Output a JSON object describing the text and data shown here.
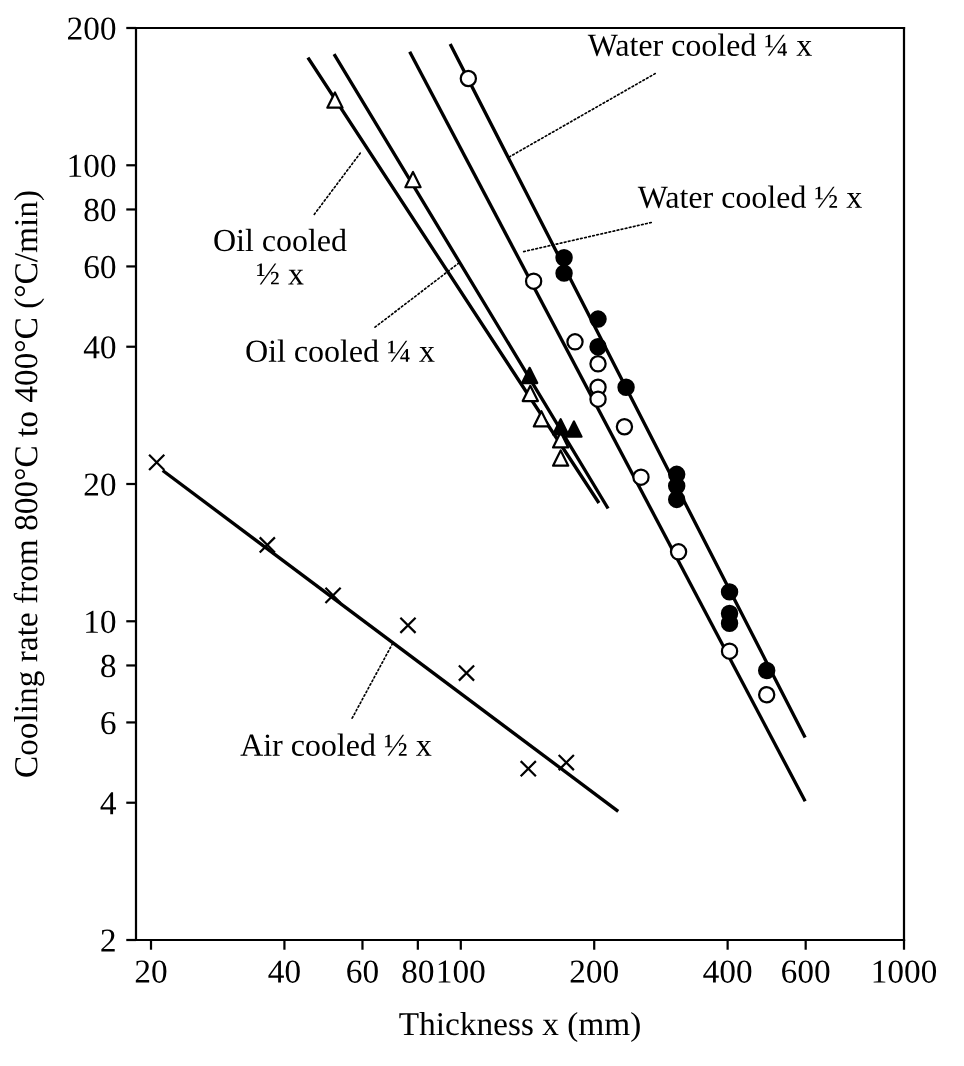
{
  "chart_data": {
    "type": "scatter",
    "xlabel": "Thickness x (mm)",
    "ylabel": "Cooling rate from 800°C to 400°C (°C/min)",
    "log": "xy",
    "xlim": [
      18.5,
      1000
    ],
    "ylim": [
      2,
      200
    ],
    "xticks": [
      20,
      40,
      60,
      80,
      100,
      200,
      400,
      600,
      1000
    ],
    "yticks": [
      2,
      4,
      6,
      8,
      10,
      20,
      40,
      60,
      80,
      100,
      200
    ],
    "grid": false,
    "series": [
      {
        "marker": "cross",
        "color": "#000000",
        "x": [
          20.6,
          36.6,
          51.5,
          76,
          103,
          142,
          173
        ],
        "values": [
          22.3,
          14.7,
          11.4,
          9.8,
          7.7,
          4.75,
          4.9
        ]
      },
      {
        "marker": "triangle",
        "color": "#ffffff",
        "x": [
          52,
          78,
          143.5,
          152,
          168,
          168
        ],
        "values": [
          139,
          93,
          31.6,
          27.8,
          25,
          22.8
        ]
      },
      {
        "marker": "triangle",
        "color": "#000000",
        "x": [
          143,
          168,
          180
        ],
        "values": [
          34.6,
          26.7,
          26.4
        ]
      },
      {
        "marker": "circle",
        "color": "#ffffff",
        "x": [
          104,
          146,
          181,
          204,
          204,
          204,
          234,
          255,
          310,
          404,
          490
        ],
        "values": [
          155,
          55.7,
          41,
          36.7,
          32.6,
          30.7,
          26.7,
          20.7,
          14.2,
          8.6,
          6.9
        ]
      },
      {
        "marker": "circle",
        "color": "#000000",
        "x": [
          171,
          171,
          204,
          204,
          236,
          307,
          307,
          307,
          404,
          404,
          404,
          490
        ],
        "values": [
          62.7,
          58,
          46,
          40,
          32.6,
          21,
          19.8,
          18.5,
          11.6,
          10.4,
          9.9,
          7.8
        ]
      },
      {
        "type": "line",
        "color": "#000000",
        "x": [
          21.4,
          225
        ],
        "values": [
          21.3,
          3.85
        ]
      },
      {
        "type": "line",
        "color": "#000000",
        "x": [
          45.4,
          204
        ],
        "values": [
          171,
          18.3
        ]
      },
      {
        "type": "line",
        "color": "#000000",
        "x": [
          52,
          214
        ],
        "values": [
          174,
          17.8
        ]
      },
      {
        "type": "line",
        "color": "#000000",
        "x": [
          77,
          596
        ],
        "values": [
          176,
          4.06
        ]
      },
      {
        "type": "line",
        "color": "#000000",
        "x": [
          95,
          596
        ],
        "values": [
          183,
          5.6
        ]
      }
    ],
    "annotations": [
      {
        "text": "Water cooled ¼ x",
        "x": 128,
        "y": 104
      },
      {
        "text": "Water cooled ½ x",
        "x": 138,
        "y": 64.6
      },
      {
        "text": "Oil cooled\n½ x",
        "x": 59.6,
        "y": 107
      },
      {
        "text": "Oil cooled ¼ x",
        "x": 100,
        "y": 61.5
      },
      {
        "text": "Air cooled ½ x",
        "x": 70,
        "y": 8.9
      }
    ]
  }
}
